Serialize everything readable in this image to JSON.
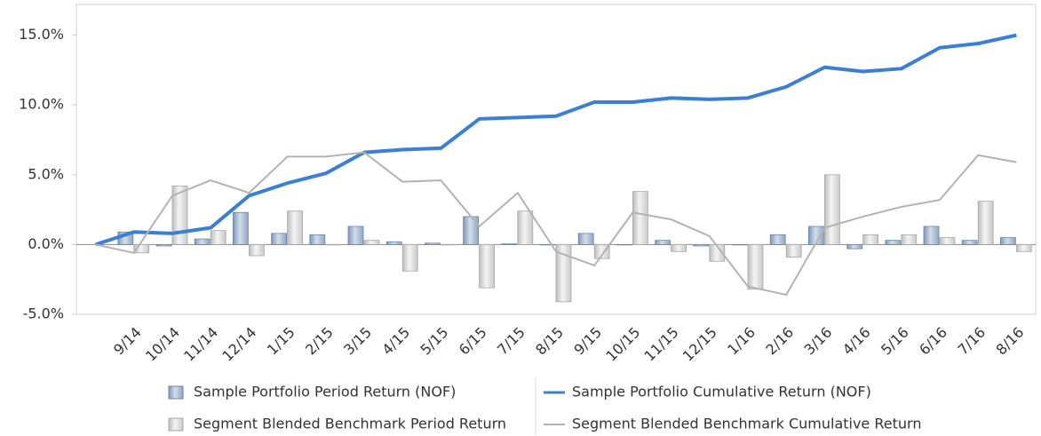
{
  "chart_data": {
    "type": "bar",
    "categories": [
      null,
      "9/14",
      "10/14",
      "11/14",
      "12/14",
      "1/15",
      "2/15",
      "3/15",
      "4/15",
      "5/15",
      "6/15",
      "7/15",
      "8/15",
      "9/15",
      "10/15",
      "11/15",
      "12/15",
      "1/16",
      "2/16",
      "3/16",
      "4/16",
      "5/16",
      "6/16",
      "7/16",
      "8/16"
    ],
    "series": [
      {
        "name": "Sample Portfolio Period Return (NOF)",
        "type": "bar",
        "color": "#9db3cf",
        "values": [
          null,
          0.9,
          -0.1,
          0.4,
          2.3,
          0.8,
          0.7,
          1.3,
          0.2,
          0.1,
          2.0,
          0.05,
          0.0,
          0.8,
          0.0,
          0.3,
          -0.1,
          0.0,
          0.7,
          1.3,
          -0.3,
          0.3,
          1.3,
          0.3,
          0.5
        ]
      },
      {
        "name": "Segment Blended Benchmark Period Return",
        "type": "bar",
        "color": "#d9d9d9",
        "values": [
          null,
          -0.6,
          4.2,
          1.0,
          -0.8,
          2.4,
          0.0,
          0.3,
          -1.9,
          0.0,
          -3.1,
          2.4,
          -4.1,
          -1.0,
          3.8,
          -0.5,
          -1.2,
          -3.2,
          -0.9,
          5.0,
          0.7,
          0.7,
          0.5,
          3.1,
          -0.5
        ]
      },
      {
        "name": "Sample Portfolio Cumulative Return (NOF)",
        "type": "line",
        "color": "#3a7fd5",
        "values": [
          0,
          0.9,
          0.8,
          1.2,
          3.5,
          4.4,
          5.1,
          6.6,
          6.8,
          6.9,
          9.0,
          9.1,
          9.2,
          10.2,
          10.2,
          10.5,
          10.4,
          10.5,
          11.3,
          12.7,
          12.4,
          12.6,
          14.1,
          14.4,
          15.0
        ]
      },
      {
        "name": "Segment Blended Benchmark Cumulative Return",
        "type": "line",
        "color": "#b3b3b3",
        "values": [
          0,
          -0.6,
          3.5,
          4.6,
          3.7,
          6.3,
          6.3,
          6.6,
          4.5,
          4.6,
          1.3,
          3.7,
          -0.5,
          -1.5,
          2.3,
          1.8,
          0.6,
          -3.0,
          -3.6,
          1.2,
          2.0,
          2.7,
          3.2,
          6.4,
          5.9
        ]
      }
    ],
    "ylim": [
      -5,
      17.2
    ],
    "yticks": [
      {
        "value": -5,
        "label": "-5.0%"
      },
      {
        "value": 0,
        "label": "0.0%"
      },
      {
        "value": 5,
        "label": "5.0%"
      },
      {
        "value": 10,
        "label": "10.0%"
      },
      {
        "value": 15,
        "label": "15.0%"
      }
    ],
    "legend": "bottom"
  }
}
